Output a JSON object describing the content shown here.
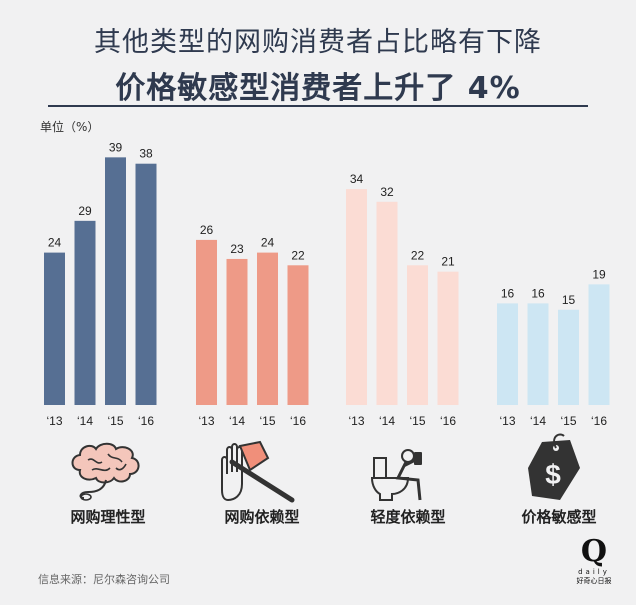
{
  "title_line1": "其他类型的网购消费者占比略有下降",
  "title_line2": "价格敏感型消费者上升了 4%",
  "unit_label": "单位（%）",
  "source": "信息来源：尼尔森咨询公司",
  "logo": {
    "mark": "Q",
    "word": "daily",
    "cn": "好奇心日报"
  },
  "colors": {
    "group1": "#566f93",
    "group2": "#ee9a87",
    "group3": "#fbdcd4",
    "group4": "#cde6f3",
    "axis": "#333333",
    "icon": "#333333"
  },
  "icons": [
    "brain-icon",
    "axe-hand-icon",
    "toilet-phone-icon",
    "price-tag-icon"
  ],
  "chart_data": {
    "type": "bar",
    "ylim": [
      0,
      42
    ],
    "groups": [
      {
        "name": "网购理性型",
        "x": [
          "‘13",
          "‘14",
          "‘15",
          "‘16"
        ],
        "values": [
          24,
          29,
          39,
          38
        ]
      },
      {
        "name": "网购依赖型",
        "x": [
          "‘13",
          "‘14",
          "‘15",
          "‘16"
        ],
        "values": [
          26,
          23,
          24,
          22
        ]
      },
      {
        "name": "轻度依赖型",
        "x": [
          "‘13",
          "‘14",
          "‘15",
          "‘16"
        ],
        "values": [
          34,
          32,
          22,
          21
        ]
      },
      {
        "name": "价格敏感型",
        "x": [
          "‘13",
          "‘14",
          "‘15",
          "‘16"
        ],
        "values": [
          16,
          16,
          15,
          19
        ]
      }
    ]
  }
}
